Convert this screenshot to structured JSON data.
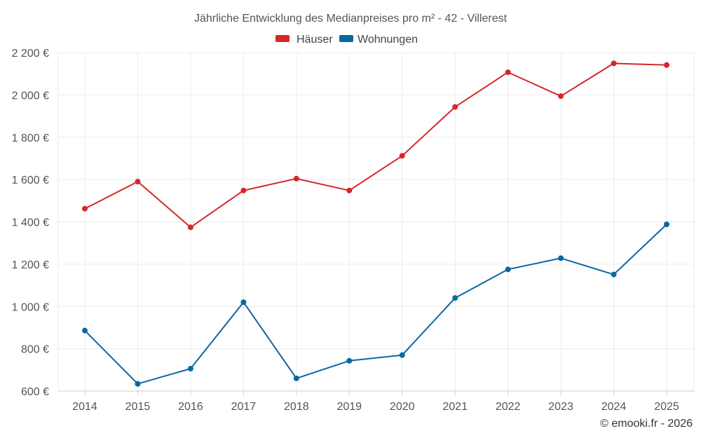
{
  "chart_data": {
    "type": "line",
    "title": "Jährliche Entwicklung des Medianpreises pro m² - 42 - Villerest",
    "categories": [
      "2014",
      "2015",
      "2016",
      "2017",
      "2018",
      "2019",
      "2020",
      "2021",
      "2022",
      "2023",
      "2024",
      "2025"
    ],
    "series": [
      {
        "name": "Häuser",
        "color": "#d62728",
        "values": [
          1462,
          1590,
          1374,
          1548,
          1604,
          1548,
          1712,
          1943,
          2107,
          1994,
          2149,
          2141
        ]
      },
      {
        "name": "Wohnungen",
        "color": "#0a67a3",
        "values": [
          886,
          634,
          706,
          1020,
          660,
          743,
          770,
          1040,
          1175,
          1228,
          1151,
          1388
        ]
      }
    ],
    "ylim": [
      600,
      2200
    ],
    "yticks": [
      600,
      800,
      1000,
      1200,
      1400,
      1600,
      1800,
      2000,
      2200
    ],
    "ytick_labels": [
      "600 €",
      "800 €",
      "1 000 €",
      "1 200 €",
      "1 400 €",
      "1 600 €",
      "1 800 €",
      "2 000 €",
      "2 200 €"
    ],
    "grid": true,
    "legend_position": "top-center",
    "xlabel": "",
    "ylabel": ""
  },
  "credit": "© emooki.fr - 2026"
}
